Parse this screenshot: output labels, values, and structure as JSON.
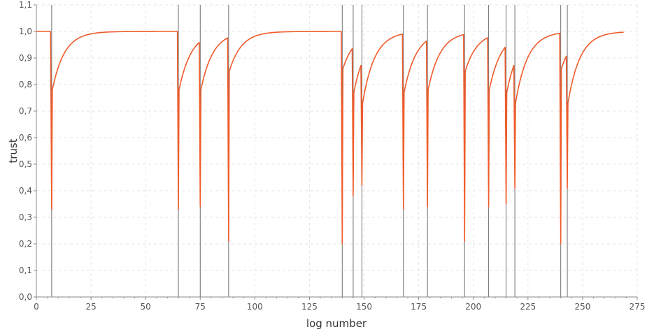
{
  "chart_data": {
    "type": "line",
    "title": "",
    "xlabel": "log number",
    "ylabel": "trust",
    "xlim": [
      0,
      275
    ],
    "ylim": [
      0,
      1.1
    ],
    "xticks": [
      0,
      25,
      50,
      75,
      100,
      125,
      150,
      175,
      200,
      225,
      250,
      275
    ],
    "yticks": [
      "0,0",
      "0,1",
      "0,2",
      "0,3",
      "0,4",
      "0,5",
      "0,6",
      "0,7",
      "0,8",
      "0,9",
      "1,0",
      "1,1"
    ],
    "grid": true,
    "legend": "none",
    "colors": {
      "series": "#ef5b2a",
      "event_line": "#707070",
      "grid": "#e6e6e6",
      "axis": "#888888"
    },
    "series": [
      {
        "x_end": 269,
        "start_value": 1.0,
        "recovery_rate": 0.18,
        "drops": [
          {
            "x": 7,
            "min": 0.33,
            "after": 0.78
          },
          {
            "x": 65,
            "min": 0.33,
            "after": 0.78
          },
          {
            "x": 75,
            "min": 0.34,
            "after": 0.78
          },
          {
            "x": 88,
            "min": 0.21,
            "after": 0.85
          },
          {
            "x": 140,
            "min": 0.2,
            "after": 0.86
          },
          {
            "x": 145,
            "min": 0.38,
            "after": 0.77
          },
          {
            "x": 149,
            "min": 0.42,
            "after": 0.73
          },
          {
            "x": 168,
            "min": 0.33,
            "after": 0.77
          },
          {
            "x": 179,
            "min": 0.34,
            "after": 0.78
          },
          {
            "x": 196,
            "min": 0.21,
            "after": 0.85
          },
          {
            "x": 207,
            "min": 0.34,
            "after": 0.78
          },
          {
            "x": 215,
            "min": 0.35,
            "after": 0.77
          },
          {
            "x": 219,
            "min": 0.41,
            "after": 0.73
          },
          {
            "x": 240,
            "min": 0.2,
            "after": 0.86
          },
          {
            "x": 243,
            "min": 0.41,
            "after": 0.73
          }
        ]
      }
    ],
    "event_lines": [
      7,
      65,
      75,
      88,
      140,
      145,
      149,
      168,
      179,
      196,
      207,
      215,
      219,
      240,
      243
    ]
  }
}
